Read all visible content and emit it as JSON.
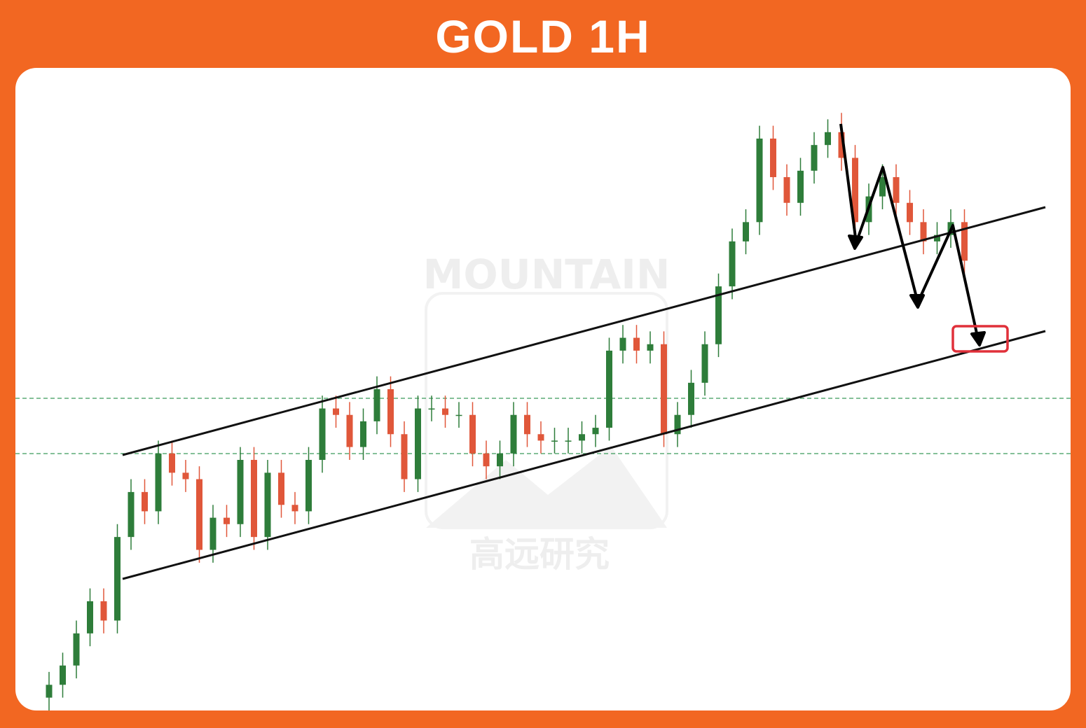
{
  "chart_data": {
    "type": "candlestick",
    "title": "GOLD 1H",
    "watermark": "MOUNTAIN",
    "watermark_sub": "高远研究",
    "up_color": "#2e7d3a",
    "down_color": "#e0573a",
    "ylim": [
      0,
      100
    ],
    "open": [
      2,
      4,
      7,
      12,
      17,
      14,
      27,
      34,
      31,
      40,
      37,
      36,
      25,
      30,
      29,
      39,
      27,
      37,
      32,
      31,
      39,
      47,
      46,
      41,
      45,
      50,
      43,
      36,
      47,
      47,
      46,
      46,
      40,
      38,
      40,
      46,
      43,
      42,
      42,
      42,
      43,
      44,
      56,
      58,
      56,
      57,
      43,
      46,
      51,
      57,
      66,
      73,
      76,
      89,
      83,
      79,
      84,
      88,
      90,
      86,
      76,
      80,
      83,
      79,
      76,
      73,
      74,
      76
    ],
    "high": [
      6,
      9,
      14,
      19,
      19,
      29,
      36,
      36,
      42,
      42,
      39,
      38,
      32,
      32,
      41,
      41,
      39,
      39,
      34,
      41,
      49,
      49,
      48,
      47,
      52,
      52,
      45,
      49,
      49,
      49,
      48,
      48,
      42,
      42,
      48,
      48,
      45,
      44,
      44,
      45,
      46,
      58,
      60,
      60,
      59,
      59,
      48,
      53,
      59,
      68,
      75,
      78,
      91,
      91,
      85,
      86,
      90,
      92,
      93,
      88,
      82,
      85,
      85,
      81,
      78,
      76,
      78,
      78
    ],
    "low": [
      0,
      2,
      5,
      10,
      12,
      12,
      25,
      29,
      29,
      35,
      34,
      23,
      23,
      27,
      27,
      25,
      25,
      30,
      29,
      29,
      37,
      44,
      39,
      39,
      43,
      41,
      34,
      34,
      45,
      44,
      44,
      38,
      36,
      36,
      38,
      41,
      40,
      40,
      40,
      40,
      41,
      42,
      54,
      54,
      54,
      41,
      41,
      44,
      49,
      55,
      64,
      71,
      74,
      81,
      77,
      77,
      82,
      86,
      84,
      74,
      74,
      78,
      77,
      74,
      71,
      71,
      72,
      68
    ],
    "close": [
      4,
      7,
      12,
      17,
      14,
      27,
      34,
      31,
      40,
      37,
      36,
      25,
      30,
      29,
      39,
      27,
      37,
      32,
      31,
      39,
      47,
      46,
      41,
      45,
      50,
      43,
      36,
      47,
      47,
      46,
      46,
      40,
      38,
      40,
      46,
      43,
      42,
      42,
      42,
      43,
      44,
      56,
      58,
      56,
      57,
      43,
      46,
      51,
      57,
      66,
      73,
      76,
      89,
      83,
      79,
      84,
      88,
      90,
      86,
      76,
      80,
      83,
      79,
      76,
      73,
      74,
      76,
      70
    ]
  }
}
